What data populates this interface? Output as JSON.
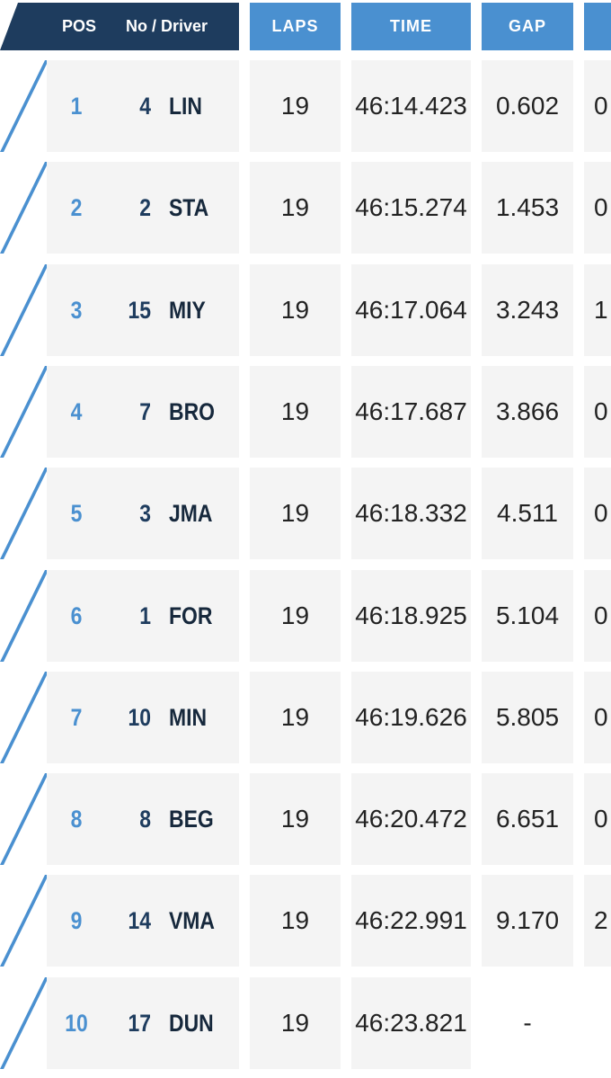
{
  "header": {
    "pos": "POS",
    "driver": "No / Driver",
    "laps": "LAPS",
    "time": "TIME",
    "gap": "GAP"
  },
  "colors": {
    "header_dark": "#1e3c5e",
    "header_blue": "#4a90d0",
    "pos_blue": "#4a90d0",
    "row_bg": "#f4f4f4"
  },
  "rows": [
    {
      "pos": "1",
      "no": "4",
      "driver": "LIN",
      "laps": "19",
      "time": "46:14.423",
      "gap": "0.602",
      "interval": "0"
    },
    {
      "pos": "2",
      "no": "2",
      "driver": "STA",
      "laps": "19",
      "time": "46:15.274",
      "gap": "1.453",
      "interval": "0"
    },
    {
      "pos": "3",
      "no": "15",
      "driver": "MIY",
      "laps": "19",
      "time": "46:17.064",
      "gap": "3.243",
      "interval": "1"
    },
    {
      "pos": "4",
      "no": "7",
      "driver": "BRO",
      "laps": "19",
      "time": "46:17.687",
      "gap": "3.866",
      "interval": "0"
    },
    {
      "pos": "5",
      "no": "3",
      "driver": "JMA",
      "laps": "19",
      "time": "46:18.332",
      "gap": "4.511",
      "interval": "0"
    },
    {
      "pos": "6",
      "no": "1",
      "driver": "FOR",
      "laps": "19",
      "time": "46:18.925",
      "gap": "5.104",
      "interval": "0"
    },
    {
      "pos": "7",
      "no": "10",
      "driver": "MIN",
      "laps": "19",
      "time": "46:19.626",
      "gap": "5.805",
      "interval": "0"
    },
    {
      "pos": "8",
      "no": "8",
      "driver": "BEG",
      "laps": "19",
      "time": "46:20.472",
      "gap": "6.651",
      "interval": "0"
    },
    {
      "pos": "9",
      "no": "14",
      "driver": "VMA",
      "laps": "19",
      "time": "46:22.991",
      "gap": "9.170",
      "interval": "2"
    },
    {
      "pos": "10",
      "no": "17",
      "driver": "DUN",
      "laps": "19",
      "time": "46:23.821",
      "gap": "-",
      "interval": ""
    }
  ]
}
